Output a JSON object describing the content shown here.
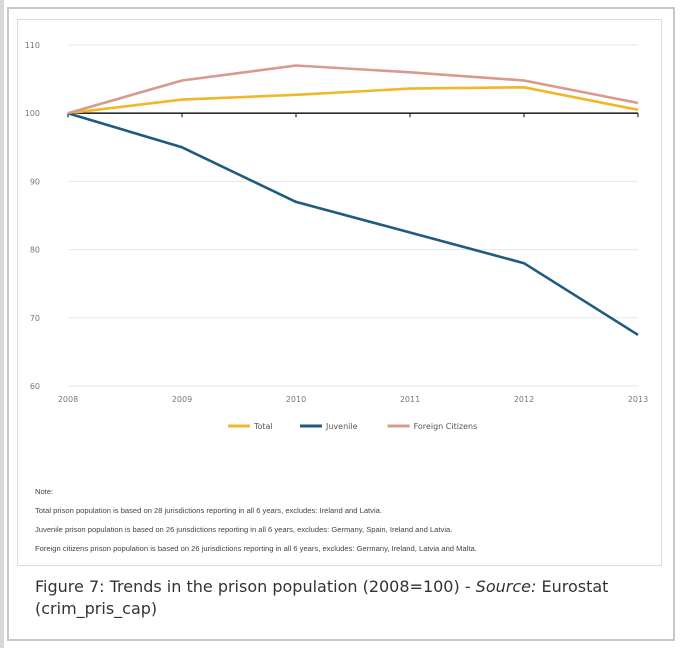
{
  "chart_data": {
    "type": "line",
    "categories": [
      "2008",
      "2009",
      "2010",
      "2011",
      "2012",
      "2013"
    ],
    "ylim": [
      60,
      110
    ],
    "y_ticks": [
      "110",
      "100",
      "90",
      "80",
      "70",
      "60"
    ],
    "grid": true,
    "legend_position": "bottom",
    "series": [
      {
        "name": "Total",
        "values": [
          100,
          102,
          102.7,
          103.6,
          103.8,
          100.5
        ],
        "color": "#f0b72a"
      },
      {
        "name": "Juvenile",
        "values": [
          100,
          95,
          87,
          82.5,
          78,
          67.5
        ],
        "color": "#1f5b80"
      },
      {
        "name": "Foreign Citizens",
        "values": [
          100,
          104.8,
          107,
          106,
          104.8,
          101.5
        ],
        "color": "#d89a8c"
      }
    ]
  },
  "notes": {
    "heading": "Note:",
    "lines": [
      "Total prison population is based on 28 jurisdictions reporting in all 6 years, excludes: Ireland and Latvia.",
      "Juvenile prison population is based on 26 jurisdictions reporting in all 6 years, excludes: Germany, Spain, Ireland and Latvia.",
      "Foreign citizens prison population is based on 26 jurisdictions reporting in all 6 years, excludes: Germany, Ireland, Latvia and Malta."
    ]
  },
  "caption": {
    "text": "Figure 7: Trends in the prison population (2008=100) - ",
    "source_label": "Source:",
    "source_text": " Eurostat (crim_pris_cap)"
  }
}
